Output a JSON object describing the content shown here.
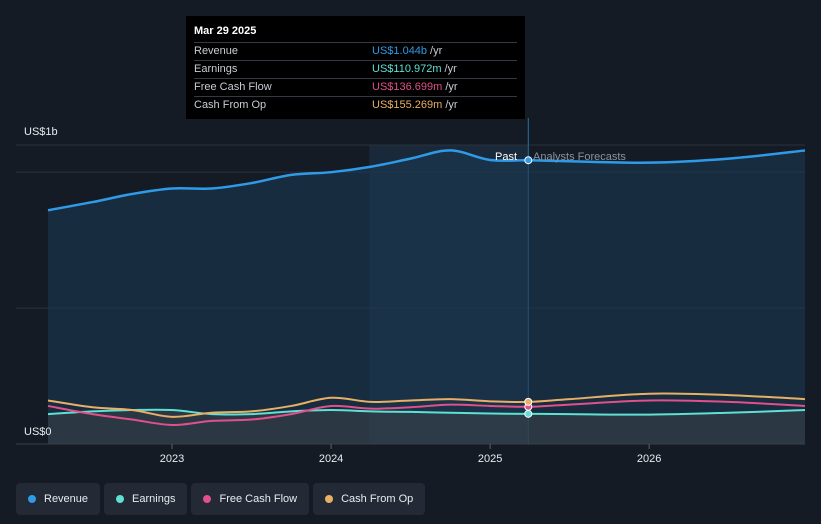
{
  "tooltip": {
    "date": "Mar 29 2025",
    "rows": [
      {
        "label": "Revenue",
        "value": "US$1.044b",
        "unit": "/yr",
        "color": "#2f9be8"
      },
      {
        "label": "Earnings",
        "value": "US$110.972m",
        "unit": "/yr",
        "color": "#5fe0d2"
      },
      {
        "label": "Free Cash Flow",
        "value": "US$136.699m",
        "unit": "/yr",
        "color": "#e0508a"
      },
      {
        "label": "Cash From Op",
        "value": "US$155.269m",
        "unit": "/yr",
        "color": "#e8b066"
      }
    ]
  },
  "axis": {
    "y_top_label": "US$1b",
    "y_bottom_label": "US$0",
    "x_ticks": [
      "2023",
      "2024",
      "2025",
      "2026"
    ]
  },
  "labels": {
    "past": "Past",
    "forecast": "Analysts Forecasts"
  },
  "legend": [
    {
      "label": "Revenue",
      "color": "#2f9be8"
    },
    {
      "label": "Earnings",
      "color": "#5fe0d2"
    },
    {
      "label": "Free Cash Flow",
      "color": "#e0508a"
    },
    {
      "label": "Cash From Op",
      "color": "#e8b066"
    }
  ],
  "chart_data": {
    "type": "line",
    "ylim": [
      0,
      1.1
    ],
    "y_unit": "US$b",
    "xlim": [
      2022.22,
      2026.98
    ],
    "divider_x": 2025.24,
    "highlight_start_x": 2024.24,
    "series": [
      {
        "name": "Revenue",
        "color": "#2f9be8",
        "x": [
          2022.22,
          2022.5,
          2022.75,
          2023.0,
          2023.25,
          2023.5,
          2023.75,
          2024.0,
          2024.25,
          2024.5,
          2024.75,
          2025.0,
          2025.24,
          2025.5,
          2026.0,
          2026.5,
          2026.98
        ],
        "y": [
          0.86,
          0.89,
          0.92,
          0.94,
          0.94,
          0.96,
          0.99,
          1.0,
          1.02,
          1.05,
          1.08,
          1.045,
          1.044,
          1.04,
          1.035,
          1.05,
          1.08
        ]
      },
      {
        "name": "Earnings",
        "color": "#5fe0d2",
        "x": [
          2022.22,
          2022.5,
          2022.75,
          2023.0,
          2023.25,
          2023.5,
          2023.75,
          2024.0,
          2024.25,
          2024.5,
          2024.75,
          2025.0,
          2025.24,
          2025.5,
          2026.0,
          2026.5,
          2026.98
        ],
        "y": [
          0.11,
          0.12,
          0.125,
          0.125,
          0.11,
          0.11,
          0.12,
          0.125,
          0.12,
          0.118,
          0.115,
          0.112,
          0.111,
          0.11,
          0.108,
          0.115,
          0.125
        ]
      },
      {
        "name": "Free Cash Flow",
        "color": "#e0508a",
        "x": [
          2022.22,
          2022.5,
          2022.75,
          2023.0,
          2023.25,
          2023.5,
          2023.75,
          2024.0,
          2024.25,
          2024.5,
          2024.75,
          2025.0,
          2025.24,
          2025.5,
          2026.0,
          2026.5,
          2026.98
        ],
        "y": [
          0.14,
          0.11,
          0.09,
          0.07,
          0.085,
          0.09,
          0.11,
          0.14,
          0.13,
          0.135,
          0.145,
          0.14,
          0.137,
          0.145,
          0.16,
          0.155,
          0.14
        ]
      },
      {
        "name": "Cash From Op",
        "color": "#e8b066",
        "x": [
          2022.22,
          2022.5,
          2022.75,
          2023.0,
          2023.25,
          2023.5,
          2023.75,
          2024.0,
          2024.25,
          2024.5,
          2024.75,
          2025.0,
          2025.24,
          2025.5,
          2026.0,
          2026.5,
          2026.98
        ],
        "y": [
          0.16,
          0.135,
          0.125,
          0.1,
          0.115,
          0.12,
          0.14,
          0.17,
          0.155,
          0.16,
          0.165,
          0.157,
          0.155,
          0.165,
          0.185,
          0.18,
          0.165
        ]
      }
    ]
  }
}
